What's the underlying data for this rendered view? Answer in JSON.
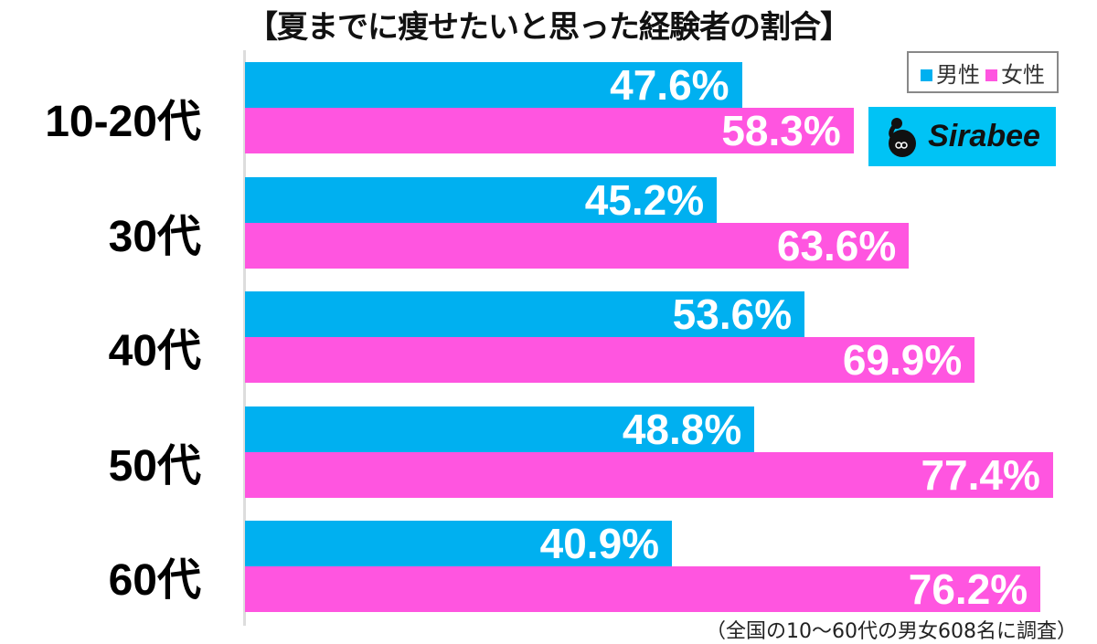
{
  "title": "【夏までに痩せたいと思った経験者の割合】",
  "legend": {
    "male": "男性",
    "female": "女性"
  },
  "colors": {
    "male": "#00b0f0",
    "female": "#ff55e0"
  },
  "logo": {
    "text": "Sirabee"
  },
  "note": "（全国の10〜60代の男女608名に調査）",
  "groups": [
    {
      "label": "10-20代",
      "male": "47.6%",
      "female": "58.3%"
    },
    {
      "label": "30代",
      "male": "45.2%",
      "female": "63.6%"
    },
    {
      "label": "40代",
      "male": "53.6%",
      "female": "69.9%"
    },
    {
      "label": "50代",
      "male": "48.8%",
      "female": "77.4%"
    },
    {
      "label": "60代",
      "male": "40.9%",
      "female": "76.2%"
    }
  ],
  "chart_data": {
    "type": "bar",
    "orientation": "horizontal",
    "title": "【夏までに痩せたいと思った経験者の割合】",
    "categories": [
      "10-20代",
      "30代",
      "40代",
      "50代",
      "60代"
    ],
    "series": [
      {
        "name": "男性",
        "values": [
          47.6,
          45.2,
          53.6,
          48.8,
          40.9
        ]
      },
      {
        "name": "女性",
        "values": [
          58.3,
          63.6,
          69.9,
          77.4,
          76.2
        ]
      }
    ],
    "xlabel": "",
    "ylabel": "",
    "xlim": [
      0,
      100
    ],
    "grid": false,
    "legend_position": "top-right",
    "annotation": "（全国の10〜60代の男女608名に調査）"
  }
}
